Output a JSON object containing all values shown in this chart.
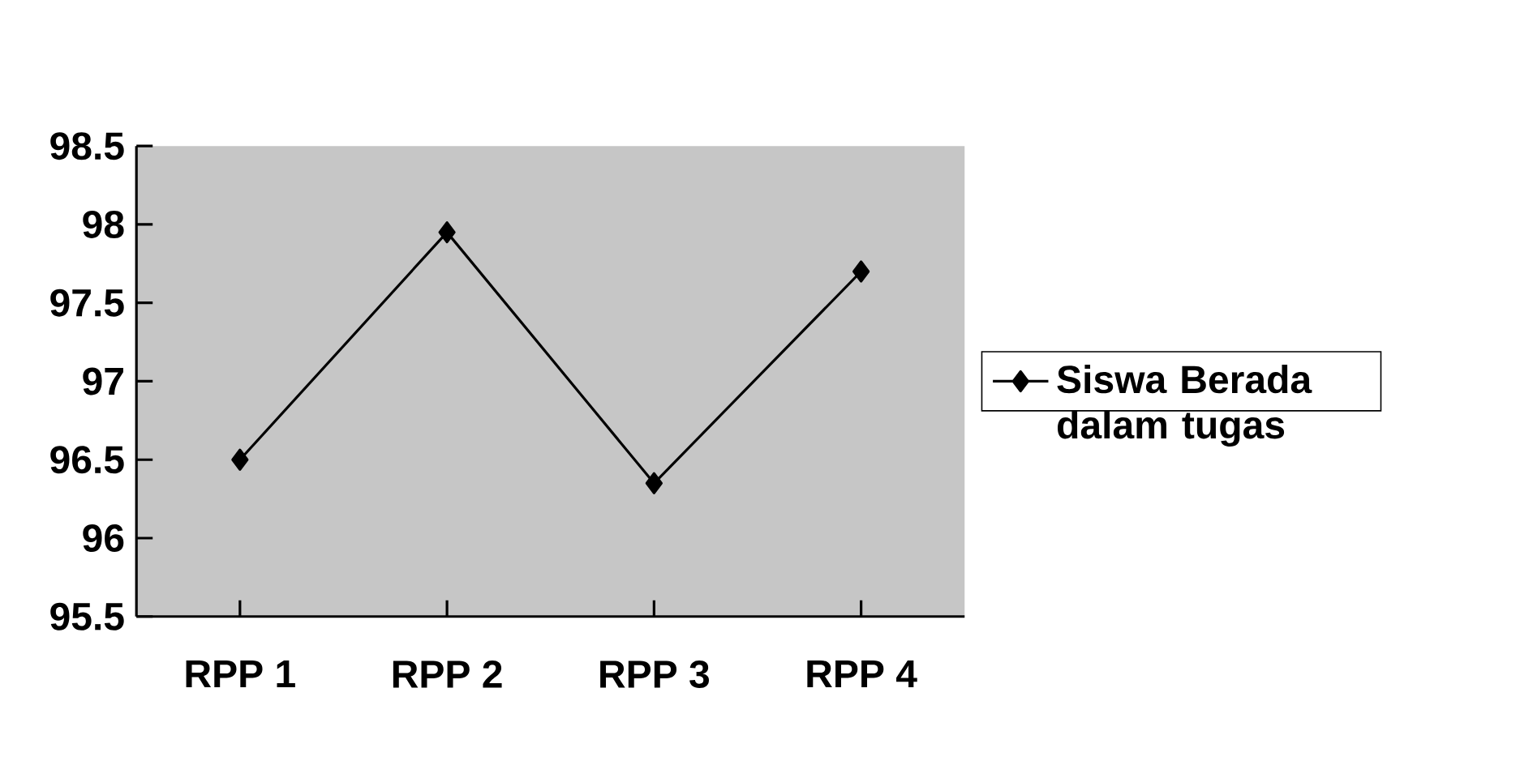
{
  "chart_data": {
    "type": "line",
    "categories": [
      "RPP 1",
      "RPP 2",
      "RPP 3",
      "RPP 4"
    ],
    "series": [
      {
        "name": "Siswa Berada dalam tugas",
        "color": "#000000",
        "values": [
          96.5,
          97.95,
          96.35,
          97.7
        ]
      }
    ],
    "ylim": [
      95.5,
      98.5
    ],
    "yticks": [
      95.5,
      96,
      96.5,
      97,
      97.5,
      98,
      98.5
    ],
    "legend": "right",
    "marker": "diamond",
    "line_style": "solid"
  }
}
